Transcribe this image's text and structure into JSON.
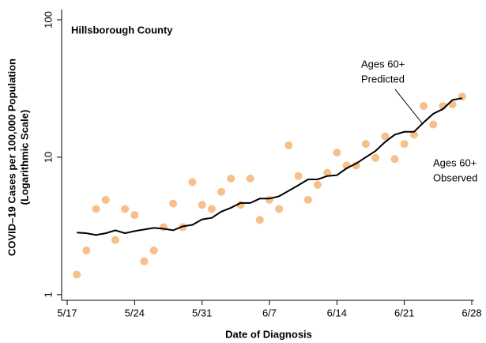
{
  "chart_data": {
    "type": "scatter-line",
    "title": "Hillsborough County",
    "x_label": "Date of Diagnosis",
    "y_label": [
      "COVID–19 Cases per 100,000 Population",
      "(Logarithmic Scale)"
    ],
    "log_scale": true,
    "ylim": [
      0.91,
      100
    ],
    "yticks": [
      1,
      10,
      100
    ],
    "xlim": [
      "5/17",
      "6/28"
    ],
    "xticks": [
      "5/17",
      "5/24",
      "5/31",
      "6/7",
      "6/14",
      "6/21",
      "6/28"
    ],
    "x": [
      "5/18",
      "5/19",
      "5/20",
      "5/21",
      "5/22",
      "5/23",
      "5/24",
      "5/25",
      "5/26",
      "5/27",
      "5/28",
      "5/29",
      "5/30",
      "5/31",
      "6/1",
      "6/2",
      "6/3",
      "6/4",
      "6/5",
      "6/6",
      "6/7",
      "6/8",
      "6/9",
      "6/10",
      "6/11",
      "6/12",
      "6/13",
      "6/14",
      "6/15",
      "6/16",
      "6/17",
      "6/18",
      "6/19",
      "6/20",
      "6/21",
      "6/22",
      "6/23",
      "6/24",
      "6/25",
      "6/26",
      "6/27"
    ],
    "series": [
      {
        "name": [
          "Ages 60+",
          "Observed"
        ],
        "kind": "scatter",
        "color": "#f7c08a",
        "values": [
          1.4,
          2.1,
          4.2,
          4.9,
          2.5,
          4.2,
          3.8,
          1.75,
          2.1,
          3.1,
          4.6,
          3.1,
          6.6,
          4.5,
          4.2,
          5.6,
          7.0,
          4.5,
          7.0,
          3.5,
          4.9,
          4.2,
          12.2,
          7.3,
          4.9,
          6.3,
          7.7,
          10.8,
          8.7,
          8.7,
          12.5,
          9.9,
          14.2,
          9.7,
          12.5,
          14.6,
          23.6,
          17.3,
          23.6,
          24.2,
          27.6
        ]
      },
      {
        "name": [
          "Ages 60+",
          "Predicted"
        ],
        "kind": "line",
        "color": "#000000",
        "values": [
          2.83,
          2.8,
          2.72,
          2.8,
          2.94,
          2.8,
          2.9,
          2.98,
          3.06,
          3.02,
          2.94,
          3.14,
          3.22,
          3.53,
          3.62,
          4.02,
          4.29,
          4.64,
          4.64,
          5.0,
          5.0,
          5.2,
          5.7,
          6.25,
          6.9,
          6.9,
          7.3,
          7.4,
          8.3,
          9.0,
          10.0,
          11.1,
          12.9,
          14.6,
          15.3,
          15.3,
          17.9,
          20.7,
          22.4,
          26.1,
          26.9
        ]
      }
    ]
  }
}
